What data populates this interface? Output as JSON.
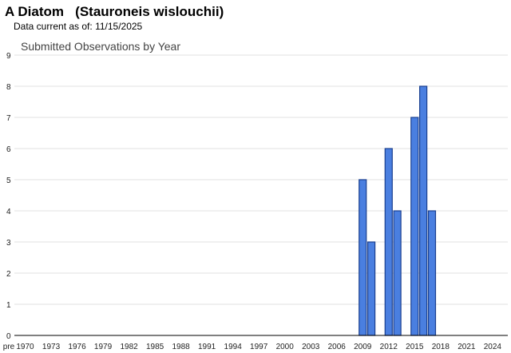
{
  "header": {
    "title": "A Diatom   (Stauroneis wislouchii)",
    "data_current_label": "Data current as of:",
    "data_current_date": "11/15/2025"
  },
  "chart_data": {
    "type": "bar",
    "title": "Submitted Observations by Year",
    "xlabel": "",
    "ylabel": "",
    "ylim": [
      0,
      9
    ],
    "yticks": [
      0,
      1,
      2,
      3,
      4,
      5,
      6,
      7,
      8,
      9
    ],
    "x_tick_labels": [
      "pre",
      "1970",
      "1973",
      "1976",
      "1979",
      "1982",
      "1985",
      "1988",
      "1991",
      "1994",
      "1997",
      "2000",
      "2003",
      "2006",
      "2009",
      "2012",
      "2015",
      "2018",
      "2021",
      "2024"
    ],
    "categories": [
      "2009",
      "2010",
      "2012",
      "2013",
      "2015",
      "2016",
      "2017"
    ],
    "values": [
      5,
      3,
      6,
      4,
      7,
      8,
      4
    ],
    "bar_color": "#4a7fe0",
    "bar_edge_color": "#1a3f8f",
    "grid": true
  }
}
